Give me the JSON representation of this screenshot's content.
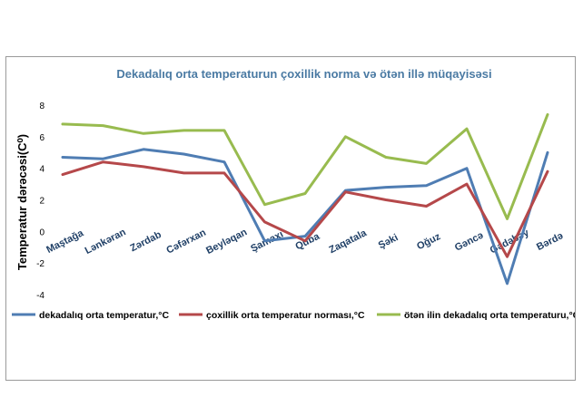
{
  "chart_data": {
    "type": "line",
    "title": "Dekadalıq orta temperaturun çoxillik norma və ötən illə müqayisəsi",
    "ylabel": "Temperatur dərəcəsi(C⁰)",
    "xlabel": "",
    "ylim": [
      -4,
      8
    ],
    "yticks": [
      -4,
      -2,
      0,
      2,
      4,
      6,
      8
    ],
    "grid": false,
    "legend_position": "bottom",
    "categories": [
      "Maştağa",
      "Lənkəran",
      "Zərdab",
      "Cəfərxan",
      "Beyləqan",
      "Şamaxı",
      "Quba",
      "Zaqatala",
      "Şəki",
      "Oğuz",
      "Gəncə",
      "Gədəbəy",
      "Bərdə"
    ],
    "series": [
      {
        "name": "dekadalıq orta temperatur,°C",
        "color": "#4f7db3",
        "values": [
          4.7,
          4.6,
          5.2,
          4.9,
          4.4,
          -0.6,
          -0.3,
          2.6,
          2.8,
          2.9,
          4.0,
          -3.3,
          5.0
        ]
      },
      {
        "name": "çoxillik orta temperatur norması,°C",
        "color": "#b5484a",
        "values": [
          3.6,
          4.4,
          4.1,
          3.7,
          3.7,
          0.6,
          -0.6,
          2.5,
          2.0,
          1.6,
          3.0,
          -1.6,
          3.8
        ]
      },
      {
        "name": "ötən ilin dekadalıq orta temperaturu,°C",
        "color": "#98bb4f",
        "values": [
          6.8,
          6.7,
          6.2,
          6.4,
          6.4,
          1.7,
          2.4,
          6.0,
          4.7,
          4.3,
          6.5,
          0.8,
          7.4
        ]
      }
    ]
  }
}
